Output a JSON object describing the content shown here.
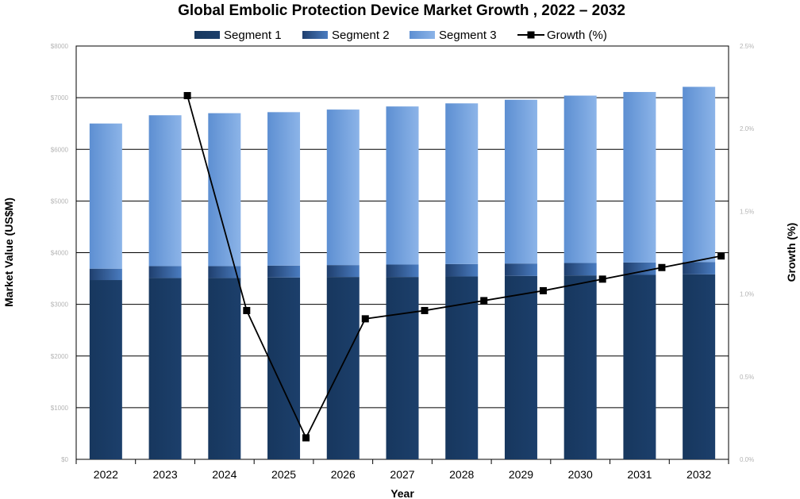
{
  "chart_data": {
    "type": "bar",
    "stacked": true,
    "title": "Global Embolic Protection Device Market Growth , 2022 – 2032",
    "xlabel": "Year",
    "ylabel": "Market Value (US$M)",
    "y2label": "Growth (%)",
    "categories": [
      "2022",
      "2023",
      "2024",
      "2025",
      "2026",
      "2027",
      "2028",
      "2029",
      "2030",
      "2031",
      "2032"
    ],
    "ylim": [
      0,
      8000
    ],
    "y2lim": [
      0,
      2.5
    ],
    "yticks": [
      "$0",
      "$1000",
      "$2000",
      "$3000",
      "$4000",
      "$5000",
      "$6000",
      "$7000",
      "$8000"
    ],
    "y2ticks": [
      "0.0%",
      "0.5%",
      "1.0%",
      "1.5%",
      "2.0%",
      "2.5%"
    ],
    "grid": true,
    "legend_position": "top",
    "series": [
      {
        "name": "Segment 1",
        "type": "bar",
        "color": "#17375e",
        "values": [
          3470,
          3510,
          3510,
          3520,
          3530,
          3530,
          3540,
          3550,
          3560,
          3570,
          3580
        ]
      },
      {
        "name": "Segment 2",
        "type": "bar",
        "color": "#2e5c99",
        "values": [
          220,
          230,
          230,
          230,
          230,
          240,
          240,
          240,
          240,
          240,
          240
        ]
      },
      {
        "name": "Segment 3",
        "type": "bar",
        "color": "#6f9fdc",
        "values": [
          2810,
          2920,
          2960,
          2970,
          3010,
          3060,
          3110,
          3170,
          3240,
          3300,
          3390
        ]
      },
      {
        "name": "Growth (%)",
        "type": "line",
        "axis": "right",
        "color": "#000000",
        "values": [
          null,
          2.2,
          0.9,
          0.13,
          0.85,
          0.9,
          0.96,
          1.02,
          1.09,
          1.16,
          1.23
        ]
      }
    ]
  }
}
